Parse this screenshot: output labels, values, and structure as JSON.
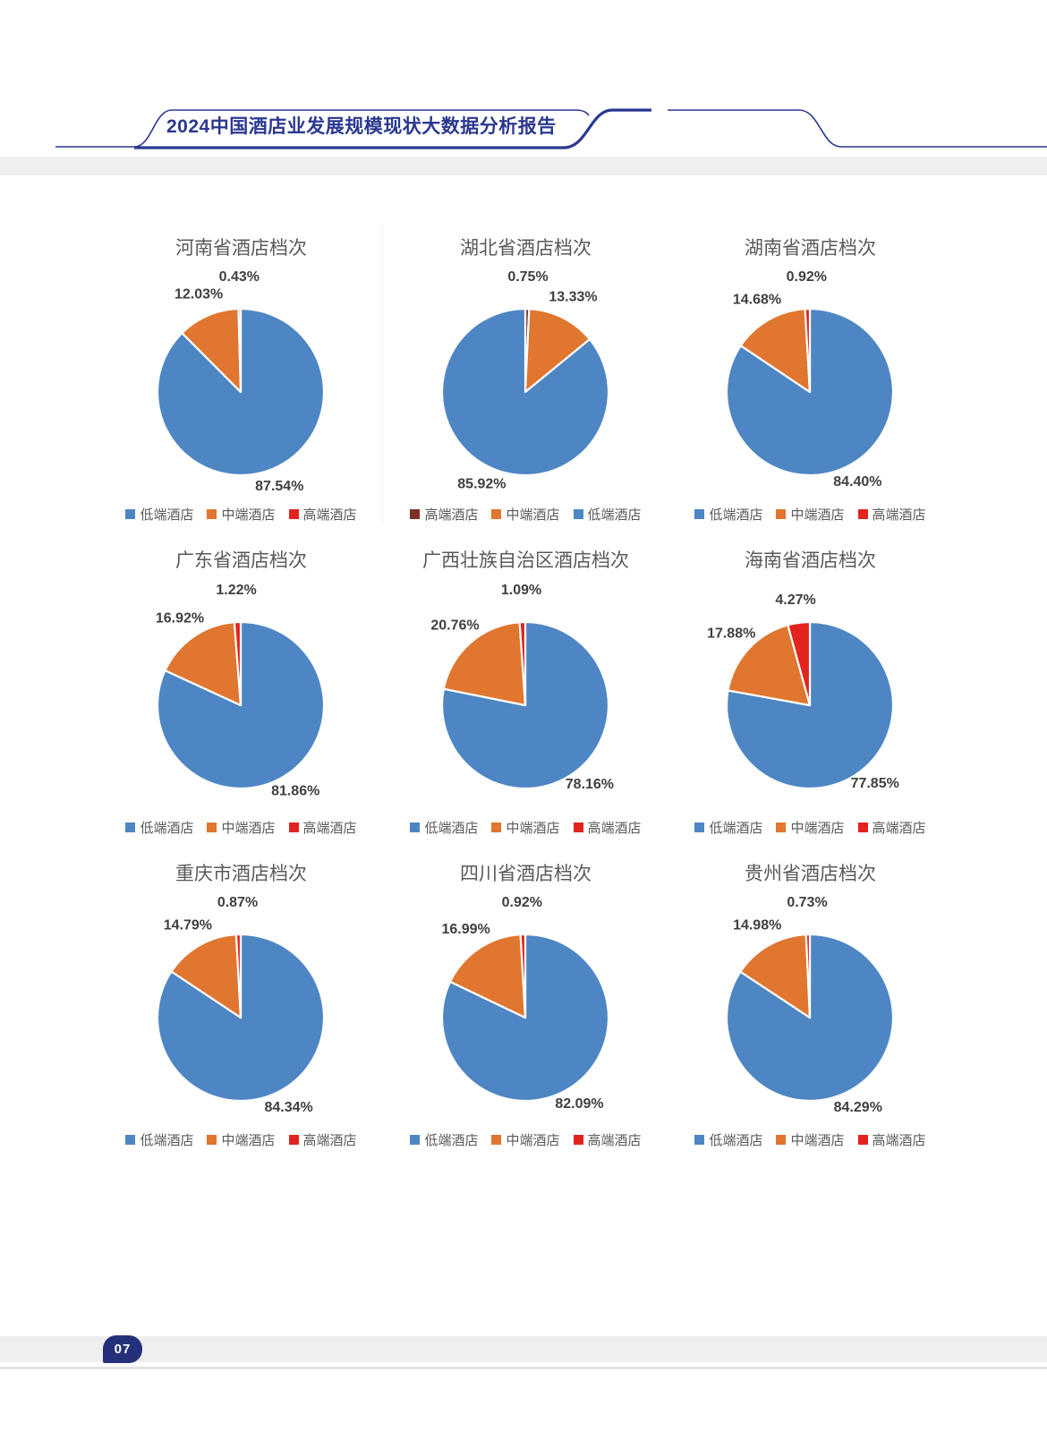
{
  "page": {
    "header_title": "2024中国酒店业发展规模现状大数据分析报告",
    "page_number": "07"
  },
  "colors": {
    "low": "#4E86C4",
    "mid": "#E0762F",
    "high": "#E2231E",
    "high_dark": "#7E3127",
    "navy_line": "#2B3890",
    "title_gray": "#595959",
    "label_gray": "#3F3F3F"
  },
  "chart_data": [
    {
      "type": "pie",
      "title": "河南省酒店档次",
      "legend_position": "bottom",
      "slices": [
        {
          "label": "低端酒店",
          "value": 87.54,
          "display": "87.54%",
          "color_key": "low"
        },
        {
          "label": "中端酒店",
          "value": 12.03,
          "display": "12.03%",
          "color_key": "mid"
        },
        {
          "label": "高端酒店",
          "value": 0.43,
          "display": "0.43%",
          "color_key": "high"
        }
      ]
    },
    {
      "type": "pie",
      "title": "湖北省酒店档次",
      "legend_position": "bottom",
      "slices": [
        {
          "label": "高端酒店",
          "value": 0.75,
          "display": "0.75%",
          "color_key": "high_dark"
        },
        {
          "label": "中端酒店",
          "value": 13.33,
          "display": "13.33%",
          "color_key": "mid"
        },
        {
          "label": "低端酒店",
          "value": 85.92,
          "display": "85.92%",
          "color_key": "low"
        }
      ]
    },
    {
      "type": "pie",
      "title": "湖南省酒店档次",
      "legend_position": "bottom",
      "slices": [
        {
          "label": "低端酒店",
          "value": 84.4,
          "display": "84.40%",
          "color_key": "low"
        },
        {
          "label": "中端酒店",
          "value": 14.68,
          "display": "14.68%",
          "color_key": "mid"
        },
        {
          "label": "高端酒店",
          "value": 0.92,
          "display": "0.92%",
          "color_key": "high"
        }
      ]
    },
    {
      "type": "pie",
      "title": "广东省酒店档次",
      "legend_position": "bottom",
      "slices": [
        {
          "label": "低端酒店",
          "value": 81.86,
          "display": "81.86%",
          "color_key": "low"
        },
        {
          "label": "中端酒店",
          "value": 16.92,
          "display": "16.92%",
          "color_key": "mid"
        },
        {
          "label": "高端酒店",
          "value": 1.22,
          "display": "1.22%",
          "color_key": "high"
        }
      ]
    },
    {
      "type": "pie",
      "title": "广西壮族自治区酒店档次",
      "legend_position": "bottom",
      "slices": [
        {
          "label": "低端酒店",
          "value": 78.16,
          "display": "78.16%",
          "color_key": "low"
        },
        {
          "label": "中端酒店",
          "value": 20.76,
          "display": "20.76%",
          "color_key": "mid"
        },
        {
          "label": "高端酒店",
          "value": 1.09,
          "display": "1.09%",
          "color_key": "high"
        }
      ]
    },
    {
      "type": "pie",
      "title": "海南省酒店档次",
      "legend_position": "bottom",
      "slices": [
        {
          "label": "低端酒店",
          "value": 77.85,
          "display": "77.85%",
          "color_key": "low"
        },
        {
          "label": "中端酒店",
          "value": 17.88,
          "display": "17.88%",
          "color_key": "mid"
        },
        {
          "label": "高端酒店",
          "value": 4.27,
          "display": "4.27%",
          "color_key": "high"
        }
      ]
    },
    {
      "type": "pie",
      "title": "重庆市酒店档次",
      "legend_position": "bottom",
      "slices": [
        {
          "label": "低端酒店",
          "value": 84.34,
          "display": "84.34%",
          "color_key": "low"
        },
        {
          "label": "中端酒店",
          "value": 14.79,
          "display": "14.79%",
          "color_key": "mid"
        },
        {
          "label": "高端酒店",
          "value": 0.87,
          "display": "0.87%",
          "color_key": "high"
        }
      ]
    },
    {
      "type": "pie",
      "title": "四川省酒店档次",
      "legend_position": "bottom",
      "slices": [
        {
          "label": "低端酒店",
          "value": 82.09,
          "display": "82.09%",
          "color_key": "low"
        },
        {
          "label": "中端酒店",
          "value": 16.99,
          "display": "16.99%",
          "color_key": "mid"
        },
        {
          "label": "高端酒店",
          "value": 0.92,
          "display": "0.92%",
          "color_key": "high"
        }
      ]
    },
    {
      "type": "pie",
      "title": "贵州省酒店档次",
      "legend_position": "bottom",
      "slices": [
        {
          "label": "低端酒店",
          "value": 84.29,
          "display": "84.29%",
          "color_key": "low"
        },
        {
          "label": "中端酒店",
          "value": 14.98,
          "display": "14.98%",
          "color_key": "mid"
        },
        {
          "label": "高端酒店",
          "value": 0.73,
          "display": "0.73%",
          "color_key": "high"
        }
      ]
    }
  ]
}
